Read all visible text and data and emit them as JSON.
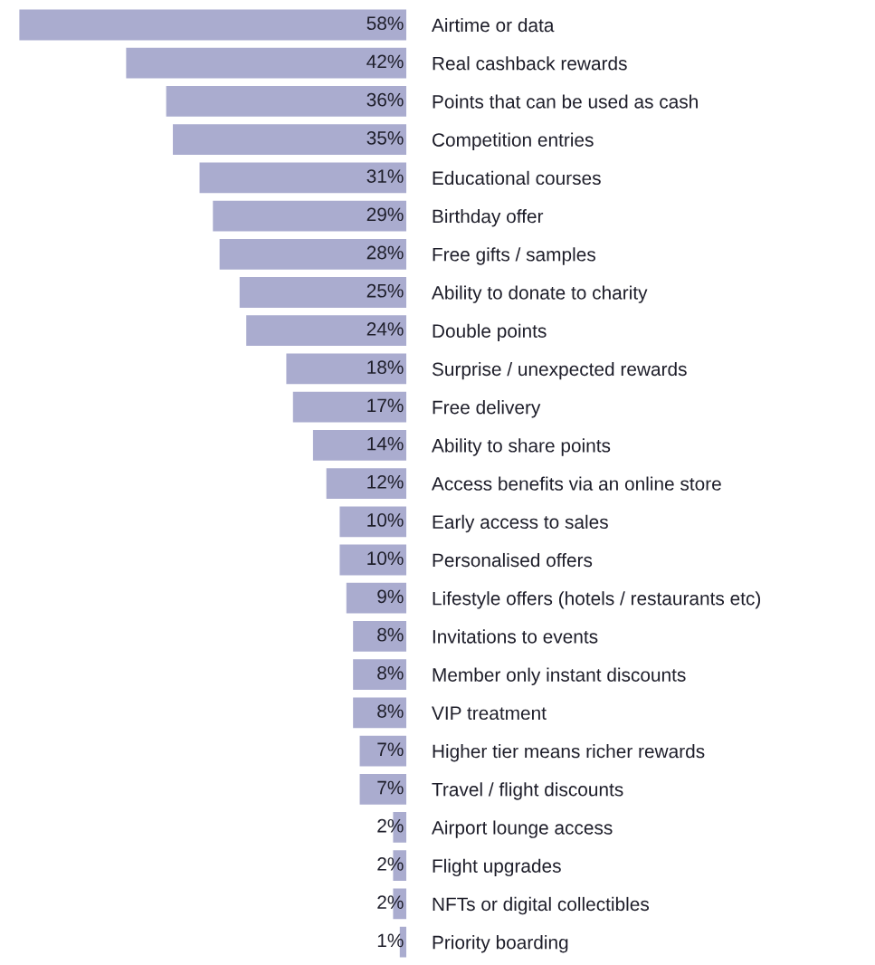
{
  "chart_data": {
    "type": "bar",
    "orientation": "horizontal",
    "categories": [
      "Airtime or data",
      "Real cashback rewards",
      "Points that can be used as cash",
      "Competition entries",
      "Educational courses",
      "Birthday offer",
      "Free gifts / samples",
      "Ability to donate to charity",
      "Double points",
      "Surprise / unexpected rewards",
      "Free delivery",
      "Ability to share points",
      "Access benefits via an online store",
      "Early access to sales",
      "Personalised offers",
      "Lifestyle offers (hotels / restaurants etc)",
      "Invitations to events",
      "Member only instant discounts",
      "VIP treatment",
      "Higher tier means richer rewards",
      "Travel / flight discounts",
      "Airport lounge access",
      "Flight upgrades",
      "NFTs or digital collectibles",
      "Priority boarding"
    ],
    "values": [
      58,
      42,
      36,
      35,
      31,
      29,
      28,
      25,
      24,
      18,
      17,
      14,
      12,
      10,
      10,
      9,
      8,
      8,
      8,
      7,
      7,
      2,
      2,
      2,
      1
    ],
    "value_labels": [
      "58%",
      "42%",
      "36%",
      "35%",
      "31%",
      "29%",
      "28%",
      "25%",
      "24%",
      "18%",
      "17%",
      "14%",
      "12%",
      "10%",
      "10%",
      "9%",
      "8%",
      "8%",
      "8%",
      "7%",
      "7%",
      "2%",
      "2%",
      "2%",
      "1%"
    ],
    "color": "#aaaccf",
    "tick_labels": "y"
  }
}
